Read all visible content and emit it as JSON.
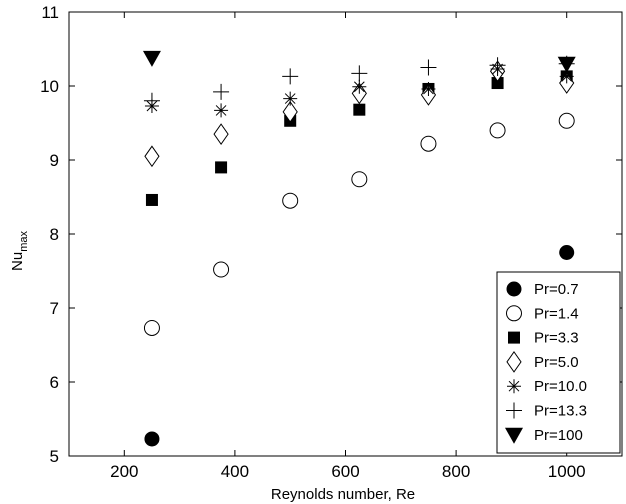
{
  "chart_data": {
    "type": "scatter",
    "title": "",
    "xlabel": "Reynolds number, Re",
    "ylabel_main": "Nu",
    "ylabel_sub": "max",
    "xlim": [
      100,
      1100
    ],
    "ylim": [
      5,
      11
    ],
    "xticks": [
      200,
      400,
      600,
      800,
      1000
    ],
    "yticks": [
      5,
      6,
      7,
      8,
      9,
      10,
      11
    ],
    "grid": false,
    "legend_position": "bottom-right",
    "series": [
      {
        "name": "Pr=0.7",
        "marker": "filled-circle",
        "x": [
          250,
          1000
        ],
        "y": [
          5.23,
          7.75
        ]
      },
      {
        "name": "Pr=1.4",
        "marker": "open-circle",
        "x": [
          250,
          375,
          500,
          625,
          750,
          875,
          1000
        ],
        "y": [
          6.73,
          7.52,
          8.45,
          8.74,
          9.22,
          9.4,
          9.53
        ]
      },
      {
        "name": "Pr=3.3",
        "marker": "filled-square",
        "x": [
          250,
          375,
          500,
          625,
          750,
          875,
          1000
        ],
        "y": [
          8.46,
          8.9,
          9.53,
          9.68,
          9.96,
          10.04,
          10.13
        ]
      },
      {
        "name": "Pr=5.0",
        "marker": "open-diamond",
        "x": [
          250,
          375,
          500,
          625,
          750,
          875,
          1000
        ],
        "y": [
          9.05,
          9.35,
          9.65,
          9.9,
          9.88,
          10.2,
          10.04
        ]
      },
      {
        "name": "Pr=10.0",
        "marker": "asterisk",
        "x": [
          250,
          375,
          500,
          625,
          750,
          875,
          1000
        ],
        "y": [
          9.73,
          9.67,
          9.83,
          9.99,
          9.96,
          10.23,
          10.13
        ]
      },
      {
        "name": "Pr=13.3",
        "marker": "plus",
        "x": [
          250,
          375,
          500,
          625,
          750,
          875,
          1000
        ],
        "y": [
          9.8,
          9.92,
          10.13,
          10.17,
          10.25,
          10.28,
          10.3
        ]
      },
      {
        "name": "Pr=100",
        "marker": "filled-triangle-down",
        "x": [
          250,
          1000
        ],
        "y": [
          10.38,
          10.3
        ]
      }
    ]
  }
}
